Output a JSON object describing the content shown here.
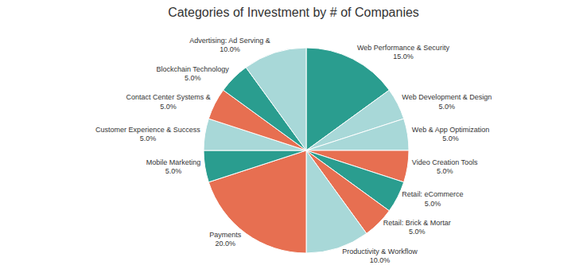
{
  "chart_data": {
    "type": "pie",
    "title": "Categories of Investment by # of Companies",
    "categories": [
      "Web Performance & Security",
      "Web Development & Design",
      "Web & App Optimization",
      "Video Creation Tools",
      "Retail: eCommerce",
      "Retail: Brick & Mortar",
      "Productivity & Workflow",
      "Payments",
      "Mobile Marketing",
      "Customer Experience & Success",
      "Contact Center Systems &",
      "Blockchain Technology",
      "Advertising: Ad Serving &"
    ],
    "values": [
      15.0,
      5.0,
      5.0,
      5.0,
      5.0,
      5.0,
      10.0,
      20.0,
      5.0,
      5.0,
      5.0,
      5.0,
      10.0
    ],
    "value_labels": [
      "15.0%",
      "5.0%",
      "5.0%",
      "5.0%",
      "5.0%",
      "5.0%",
      "10.0%",
      "20.0%",
      "5.0%",
      "5.0%",
      "5.0%",
      "5.0%",
      "10.0%"
    ],
    "colors": [
      "#2a9d8f",
      "#a8d8d8",
      "#a8d8d8",
      "#e76f51",
      "#2a9d8f",
      "#e76f51",
      "#a8d8d8",
      "#e76f51",
      "#2a9d8f",
      "#a8d8d8",
      "#e76f51",
      "#2a9d8f",
      "#a8d8d8"
    ],
    "data_labels": true
  }
}
